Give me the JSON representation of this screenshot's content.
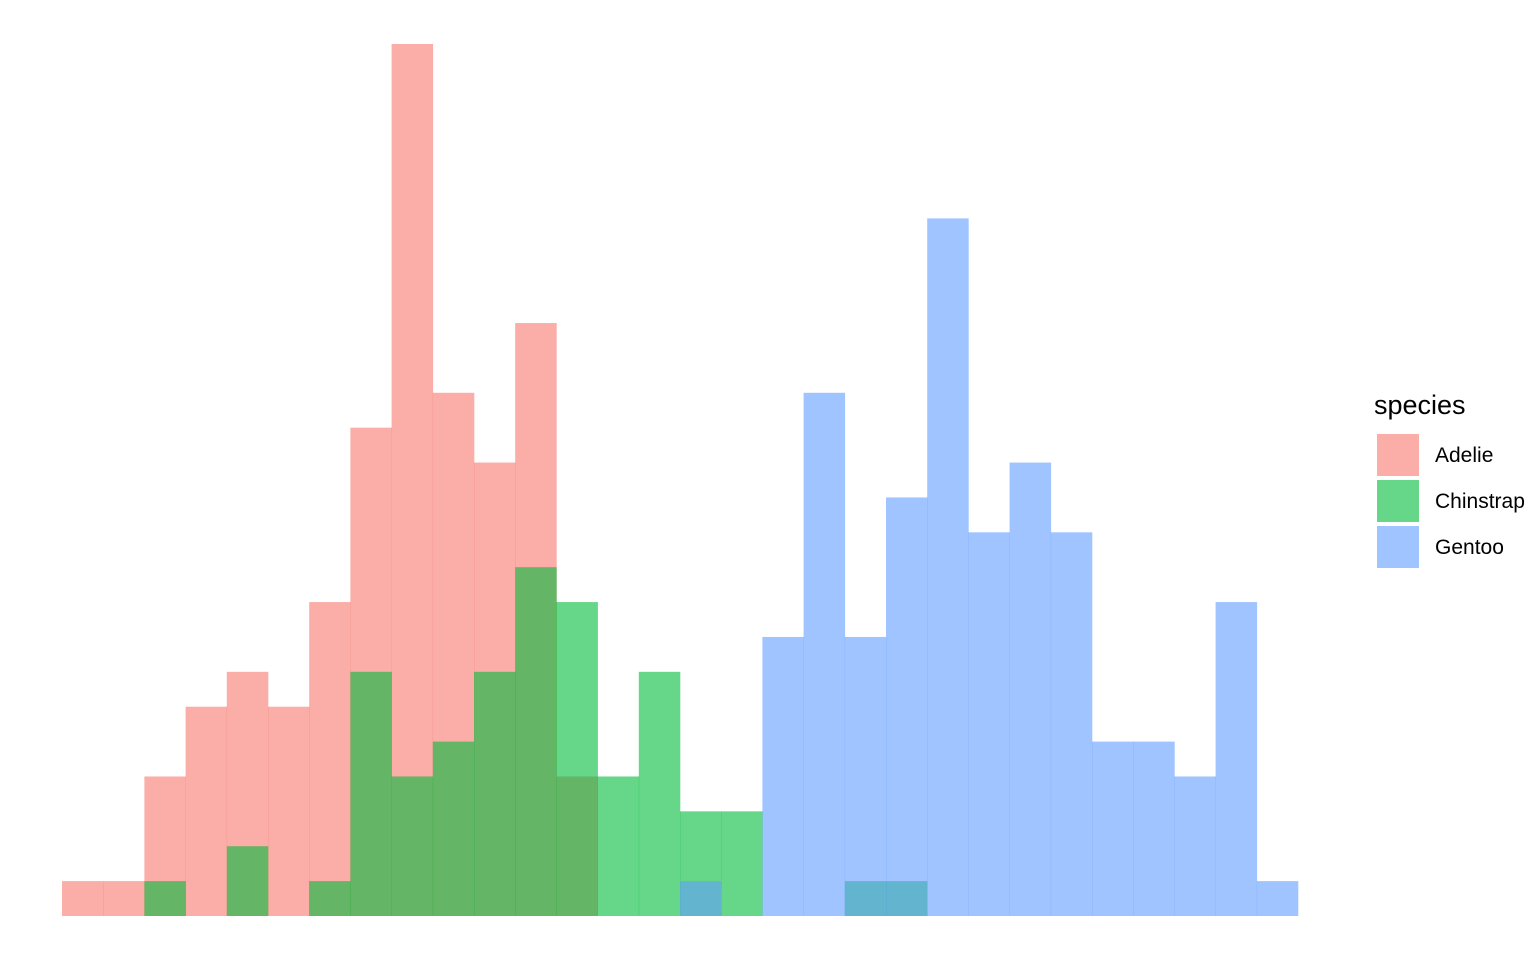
{
  "chart_data": {
    "type": "histogram",
    "grid": false,
    "axes_visible": false,
    "legend_placement": "right",
    "legend_title": "species",
    "bins": 30,
    "xlim": [
      0,
      30
    ],
    "ylim": [
      0,
      25
    ],
    "series": [
      {
        "name": "Adelie",
        "color": "#F8766D",
        "values": [
          1,
          1,
          4,
          6,
          7,
          6,
          9,
          14,
          25,
          15,
          13,
          17,
          4,
          0,
          0,
          0,
          0,
          0,
          0,
          0,
          0,
          0,
          0,
          0,
          0,
          0,
          0,
          0,
          0,
          0
        ]
      },
      {
        "name": "Chinstrap",
        "color": "#00BA38",
        "values": [
          0,
          0,
          1,
          0,
          2,
          0,
          1,
          7,
          4,
          5,
          7,
          10,
          9,
          4,
          7,
          3,
          3,
          0,
          0,
          1,
          1,
          0,
          0,
          0,
          0,
          0,
          0,
          0,
          0,
          0
        ]
      },
      {
        "name": "Gentoo",
        "color": "#619CFF",
        "values": [
          0,
          0,
          0,
          0,
          0,
          0,
          0,
          0,
          0,
          0,
          0,
          0,
          0,
          0,
          0,
          1,
          0,
          8,
          15,
          8,
          12,
          20,
          11,
          13,
          11,
          5,
          5,
          4,
          9,
          1
        ]
      }
    ]
  }
}
